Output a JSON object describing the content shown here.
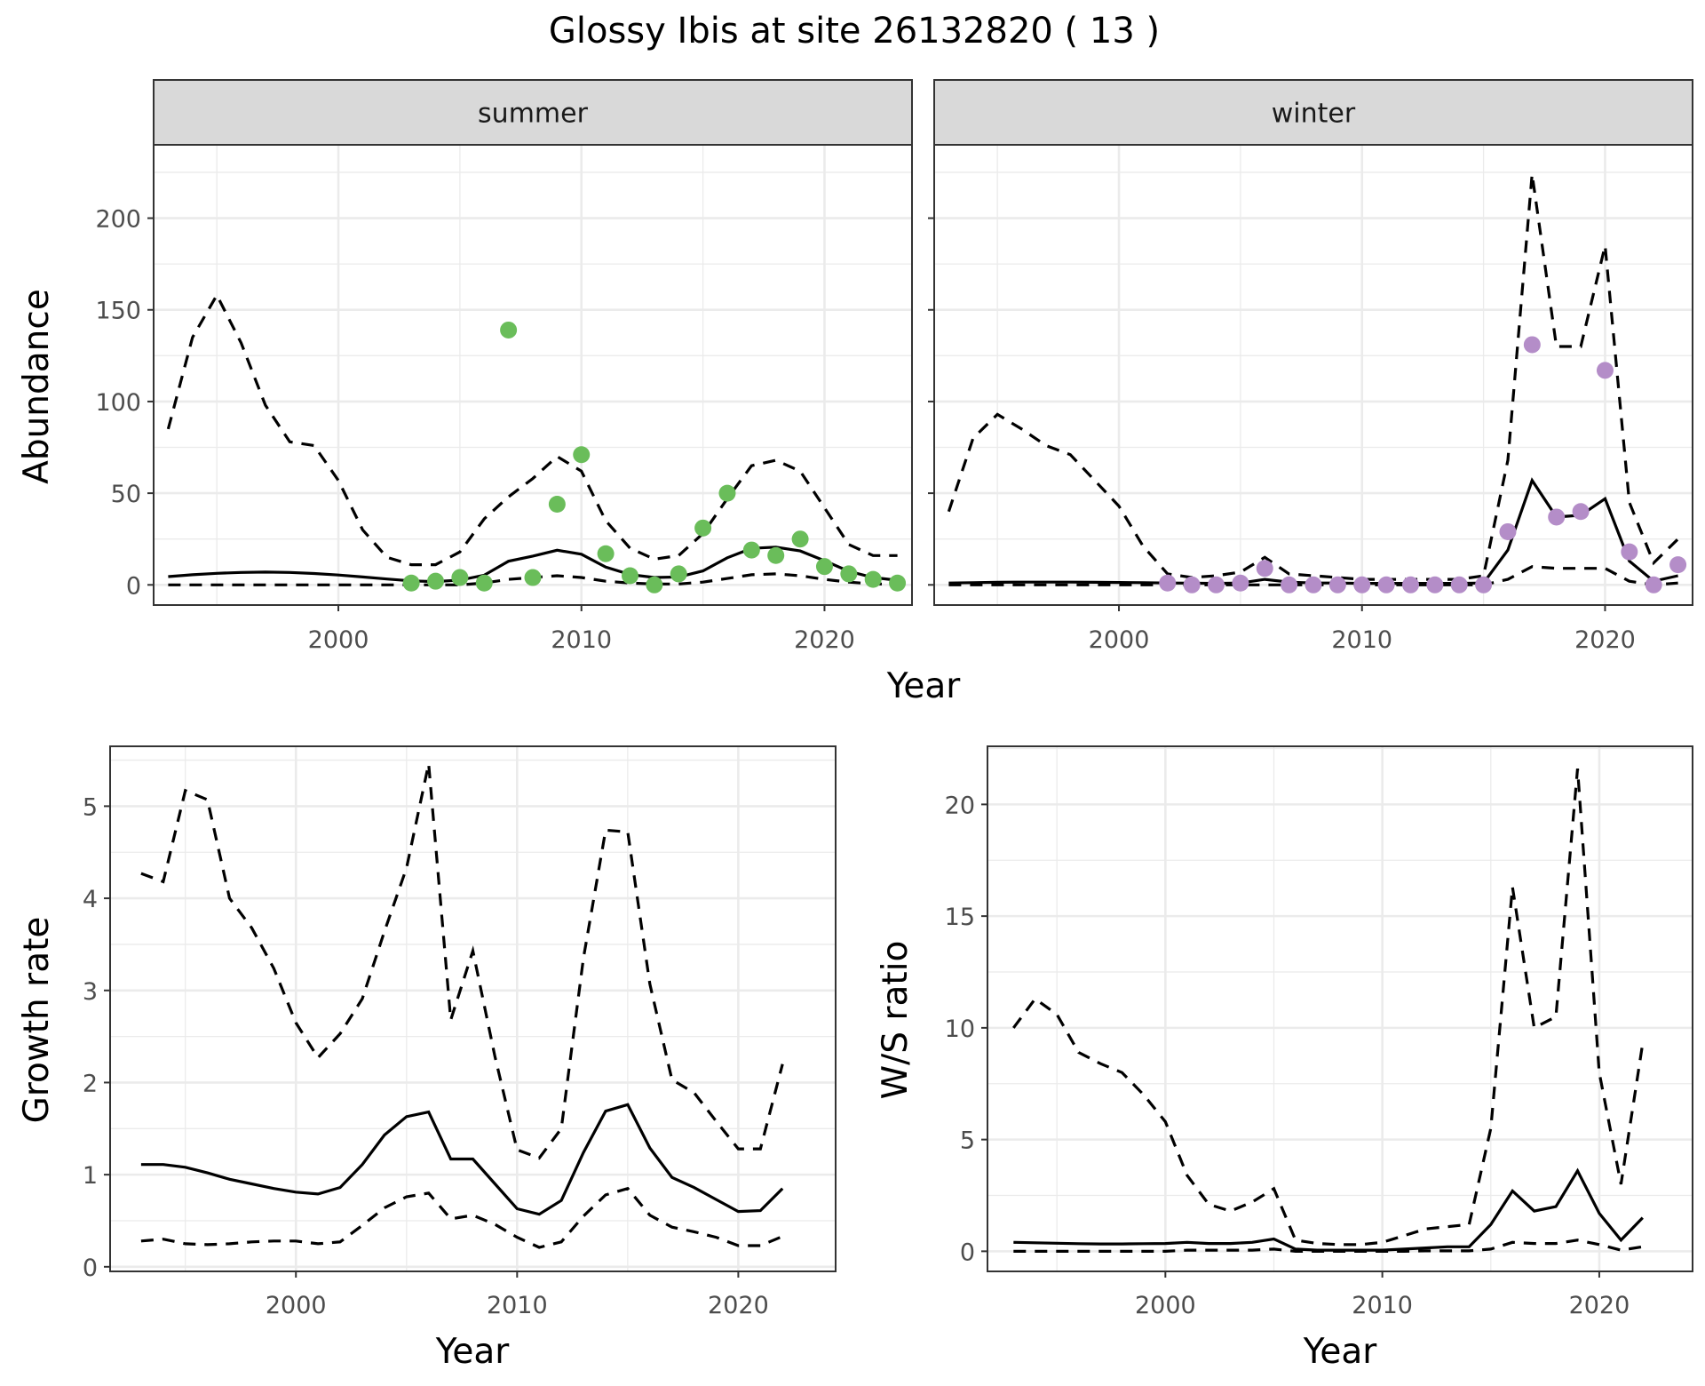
{
  "title": "Glossy Ibis at site 26132820 ( 13 )",
  "colors": {
    "summer_points": "#6abd5a",
    "winter_points": "#b48dc8",
    "lines": "#000000"
  },
  "chart_data": [
    {
      "id": "abundance",
      "type": "line",
      "facets": [
        "summer",
        "winter"
      ],
      "xlabel": "Year",
      "ylabel": "Abundance",
      "xlim": [
        1992.4,
        2023.6
      ],
      "ylim": [
        -11,
        240
      ],
      "xticks": [
        2000,
        2010,
        2020
      ],
      "yticks": [
        0,
        50,
        100,
        150,
        200
      ],
      "grid": true,
      "panels": [
        {
          "strip": "summer",
          "x": [
            1993,
            1994,
            1995,
            1996,
            1997,
            1998,
            1999,
            2000,
            2001,
            2002,
            2003,
            2004,
            2005,
            2006,
            2007,
            2008,
            2009,
            2010,
            2011,
            2012,
            2013,
            2014,
            2015,
            2016,
            2017,
            2018,
            2019,
            2020,
            2021,
            2022,
            2023
          ],
          "series": [
            {
              "role": "mean",
              "values": [
                4.5,
                5.5,
                6.3,
                6.8,
                7,
                6.8,
                6.2,
                5.4,
                4.3,
                3.2,
                2.2,
                1.8,
                2.6,
                5.3,
                12.9,
                15.7,
                18.9,
                16.7,
                9.7,
                5.6,
                4,
                4.3,
                7.6,
                14.8,
                19.9,
                20.6,
                18.5,
                13.2,
                7.4,
                4,
                2.5
              ]
            },
            {
              "role": "upper",
              "values": [
                85,
                135,
                158,
                132,
                98,
                78,
                76,
                57,
                30,
                15,
                11,
                11,
                18,
                36,
                48,
                58,
                70,
                62,
                35,
                20,
                14,
                16,
                28,
                47,
                65,
                68,
                62,
                42,
                22,
                16,
                16
              ]
            },
            {
              "role": "lower",
              "values": [
                0,
                0,
                0,
                0,
                0,
                0,
                0,
                0,
                0,
                0,
                0,
                0,
                0,
                1,
                3,
                4,
                5,
                4,
                2,
                1,
                0.5,
                0.5,
                1.5,
                3.5,
                5.5,
                6,
                5,
                3,
                1.5,
                0.5,
                0.5
              ]
            }
          ],
          "points": {
            "x": [
              2003,
              2004,
              2005,
              2006,
              2007,
              2008,
              2009,
              2010,
              2011,
              2012,
              2013,
              2014,
              2015,
              2016,
              2017,
              2018,
              2019,
              2020,
              2021,
              2022,
              2023
            ],
            "y": [
              1,
              2,
              4,
              1,
              139,
              4,
              44,
              71,
              17,
              5,
              0,
              6,
              31,
              50,
              19,
              16,
              25,
              10,
              6,
              3,
              1
            ]
          }
        },
        {
          "strip": "winter",
          "x": [
            1993,
            1994,
            1995,
            1996,
            1997,
            1998,
            1999,
            2000,
            2001,
            2002,
            2003,
            2004,
            2005,
            2006,
            2007,
            2008,
            2009,
            2010,
            2011,
            2012,
            2013,
            2014,
            2015,
            2016,
            2017,
            2018,
            2019,
            2020,
            2021,
            2022,
            2023
          ],
          "series": [
            {
              "role": "mean",
              "values": [
                1,
                1.2,
                1.4,
                1.5,
                1.5,
                1.5,
                1.4,
                1.3,
                1.2,
                1,
                0.9,
                0.8,
                1,
                3,
                1.5,
                1,
                1,
                0.8,
                0.8,
                0.8,
                0.8,
                0.8,
                1,
                19,
                57,
                37,
                38,
                47,
                13,
                2,
                5
              ]
            },
            {
              "role": "upper",
              "values": [
                40,
                80,
                93,
                85,
                76,
                71,
                57,
                43,
                21,
                6,
                4,
                5,
                7,
                15,
                6,
                5,
                4,
                3,
                3,
                3,
                3,
                3,
                5,
                68,
                224,
                130,
                130,
                185,
                45,
                12,
                25
              ]
            },
            {
              "role": "lower",
              "values": [
                0,
                0,
                0,
                0,
                0,
                0,
                0,
                0,
                0,
                0,
                0,
                0,
                0,
                0,
                0,
                0,
                0,
                0,
                0,
                0,
                0,
                0,
                0,
                3,
                10,
                9,
                9,
                9,
                2,
                0,
                1
              ]
            }
          ],
          "points": {
            "x": [
              2002,
              2003,
              2004,
              2005,
              2006,
              2007,
              2008,
              2009,
              2010,
              2011,
              2012,
              2013,
              2014,
              2015,
              2016,
              2017,
              2018,
              2019,
              2020,
              2021,
              2022,
              2023
            ],
            "y": [
              1,
              0,
              0,
              1,
              9,
              0,
              0,
              0,
              0,
              0,
              0,
              0,
              0,
              0,
              29,
              131,
              37,
              40,
              117,
              18,
              0,
              11
            ]
          }
        }
      ]
    },
    {
      "id": "growth",
      "type": "line",
      "xlabel": "Year",
      "ylabel": "Growth rate",
      "xlim": [
        1991.6,
        2024.4
      ],
      "ylim": [
        -0.05,
        5.65
      ],
      "xticks": [
        2000,
        2010,
        2020
      ],
      "yticks": [
        0,
        1,
        2,
        3,
        4,
        5
      ],
      "grid": true,
      "x": [
        1993,
        1994,
        1995,
        1996,
        1997,
        1998,
        1999,
        2000,
        2001,
        2002,
        2003,
        2004,
        2005,
        2006,
        2007,
        2008,
        2009,
        2010,
        2011,
        2012,
        2013,
        2014,
        2015,
        2016,
        2017,
        2018,
        2019,
        2020,
        2021,
        2022
      ],
      "series": [
        {
          "role": "mean",
          "values": [
            1.11,
            1.11,
            1.08,
            1.02,
            0.95,
            0.9,
            0.85,
            0.81,
            0.79,
            0.86,
            1.11,
            1.43,
            1.63,
            1.68,
            1.17,
            1.17,
            0.9,
            0.63,
            0.57,
            0.72,
            1.24,
            1.69,
            1.76,
            1.29,
            0.97,
            0.86,
            0.73,
            0.6,
            0.61,
            0.85
          ]
        },
        {
          "role": "upper",
          "values": [
            4.27,
            4.18,
            5.17,
            5.07,
            4.0,
            3.68,
            3.24,
            2.65,
            2.27,
            2.53,
            2.91,
            3.64,
            4.33,
            5.46,
            2.68,
            3.43,
            2.28,
            1.27,
            1.18,
            1.5,
            3.35,
            4.74,
            4.72,
            3.07,
            2.03,
            1.89,
            1.58,
            1.28,
            1.28,
            2.2
          ]
        },
        {
          "role": "lower",
          "values": [
            0.28,
            0.3,
            0.25,
            0.24,
            0.25,
            0.27,
            0.28,
            0.28,
            0.25,
            0.27,
            0.45,
            0.64,
            0.76,
            0.8,
            0.52,
            0.56,
            0.46,
            0.32,
            0.21,
            0.27,
            0.55,
            0.78,
            0.85,
            0.56,
            0.43,
            0.38,
            0.32,
            0.23,
            0.23,
            0.33
          ]
        }
      ]
    },
    {
      "id": "ratio",
      "type": "line",
      "xlabel": "Year",
      "ylabel": "W/S ratio",
      "xlim": [
        1991.8,
        2024.3
      ],
      "ylim": [
        -0.9,
        22.6
      ],
      "xticks": [
        2000,
        2010,
        2020
      ],
      "yticks": [
        0,
        5,
        10,
        15,
        20
      ],
      "grid": true,
      "x": [
        1993,
        1994,
        1995,
        1996,
        1997,
        1998,
        1999,
        2000,
        2001,
        2002,
        2003,
        2004,
        2005,
        2006,
        2007,
        2008,
        2009,
        2010,
        2011,
        2012,
        2013,
        2014,
        2015,
        2016,
        2017,
        2018,
        2019,
        2020,
        2021,
        2022
      ],
      "series": [
        {
          "role": "mean",
          "values": [
            0.4,
            0.38,
            0.36,
            0.34,
            0.33,
            0.33,
            0.34,
            0.35,
            0.4,
            0.35,
            0.35,
            0.4,
            0.55,
            0.1,
            0.05,
            0.05,
            0.05,
            0.05,
            0.1,
            0.15,
            0.2,
            0.2,
            1.2,
            2.7,
            1.8,
            2.0,
            3.6,
            1.7,
            0.5,
            1.5
          ]
        },
        {
          "role": "upper",
          "values": [
            10,
            11.3,
            10.6,
            8.9,
            8.4,
            8.0,
            7.0,
            5.8,
            3.4,
            2.1,
            1.8,
            2.2,
            2.8,
            0.5,
            0.35,
            0.3,
            0.3,
            0.4,
            0.7,
            1.0,
            1.1,
            1.2,
            5.5,
            16.3,
            10.0,
            10.5,
            21.6,
            8.0,
            3.0,
            9.3
          ]
        },
        {
          "role": "lower",
          "values": [
            0,
            0,
            0,
            0,
            0,
            0,
            0,
            0,
            0.05,
            0.05,
            0.05,
            0.05,
            0.1,
            0,
            0,
            0,
            0,
            0,
            0,
            0.02,
            0.02,
            0.02,
            0.1,
            0.4,
            0.35,
            0.35,
            0.5,
            0.3,
            0.05,
            0.2
          ]
        }
      ]
    }
  ]
}
